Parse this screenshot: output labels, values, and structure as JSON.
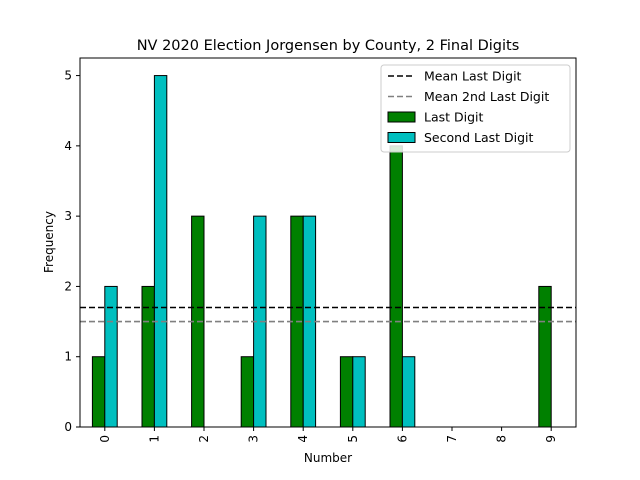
{
  "chart_data": {
    "type": "bar",
    "title": "NV 2020 Election Jorgensen by County, 2 Final Digits",
    "xlabel": "Number",
    "ylabel": "Frequency",
    "categories": [
      "0",
      "1",
      "2",
      "3",
      "4",
      "5",
      "6",
      "7",
      "8",
      "9"
    ],
    "ylim": [
      0,
      5.25
    ],
    "yticks": [
      "0",
      "1",
      "2",
      "3",
      "4",
      "5"
    ],
    "series": [
      {
        "name": "Last Digit",
        "color": "#008000",
        "values": [
          1,
          2,
          3,
          1,
          3,
          1,
          4,
          0,
          0,
          2
        ]
      },
      {
        "name": "Second Last Digit",
        "color": "#00bfbf",
        "values": [
          2,
          5,
          0,
          3,
          3,
          1,
          1,
          0,
          0,
          0
        ]
      }
    ],
    "hlines": [
      {
        "name": "Mean Last Digit",
        "value": 1.7,
        "color": "#000000",
        "style": "dashed"
      },
      {
        "name": "Mean 2nd Last Digit",
        "value": 1.5,
        "color": "#808080",
        "style": "dashed"
      }
    ],
    "legend": "top-right",
    "grid": false
  }
}
